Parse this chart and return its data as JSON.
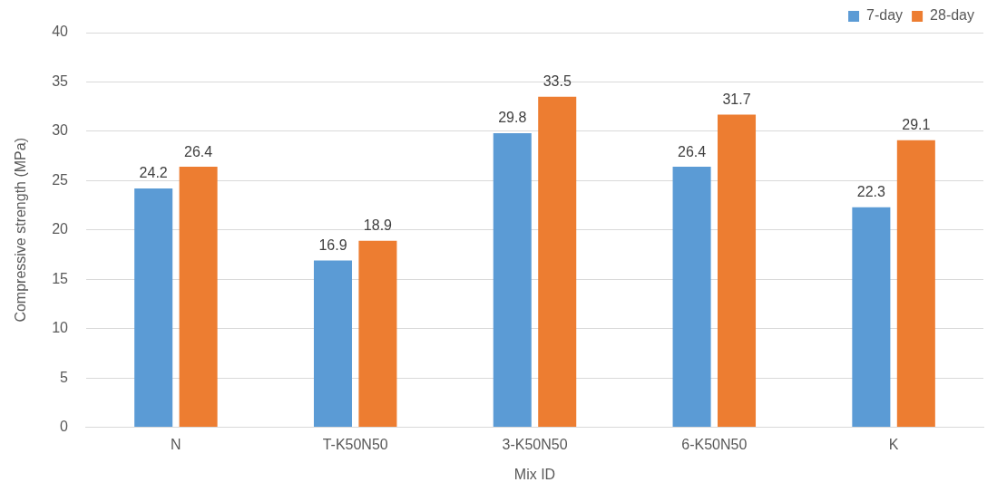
{
  "chart_data": {
    "type": "bar",
    "xlabel": "Mix ID",
    "ylabel": "Compressive strength (MPa)",
    "categories": [
      "N",
      "T-K50N50",
      "3-K50N50",
      "6-K50N50",
      "K"
    ],
    "series": [
      {
        "name": "7-day",
        "color": "#5b9bd5",
        "values": [
          24.2,
          16.9,
          29.8,
          26.4,
          22.3
        ]
      },
      {
        "name": "28-day",
        "color": "#ed7d31",
        "values": [
          26.4,
          18.9,
          33.5,
          31.7,
          29.1
        ]
      }
    ],
    "ylim": [
      0,
      40
    ],
    "yticks": [
      0,
      5,
      10,
      15,
      20,
      25,
      30,
      35,
      40
    ],
    "grid": "y",
    "legend": "top right",
    "data_labels": true
  }
}
